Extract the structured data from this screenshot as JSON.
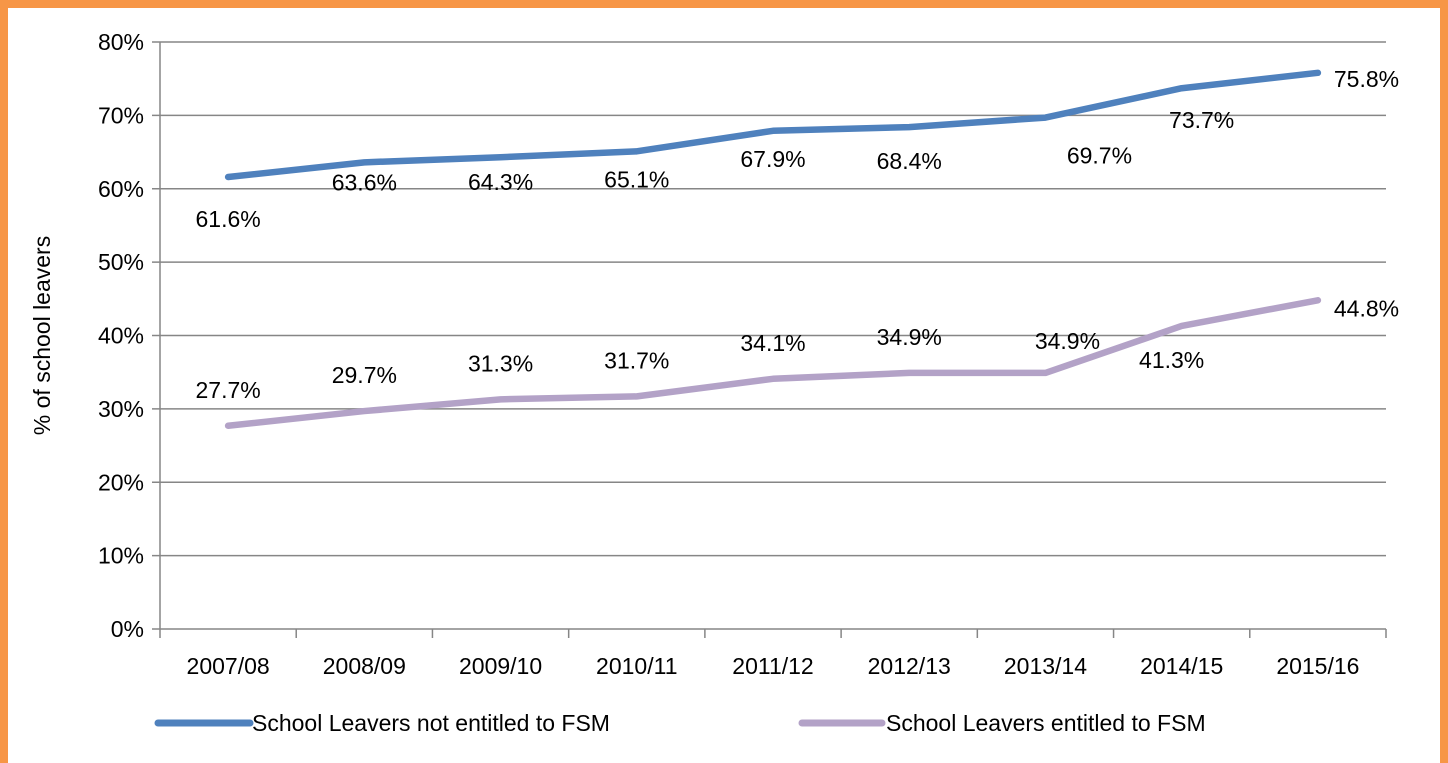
{
  "chart_data": {
    "type": "line",
    "title": "",
    "xlabel": "",
    "ylabel": "% of school leavers",
    "categories": [
      "2007/08",
      "2008/09",
      "2009/10",
      "2010/11",
      "2011/12",
      "2012/13",
      "2013/14",
      "2014/15",
      "2015/16"
    ],
    "ylim": [
      0,
      80
    ],
    "yticks": [
      "0%",
      "10%",
      "20%",
      "30%",
      "40%",
      "50%",
      "60%",
      "70%",
      "80%"
    ],
    "grid": true,
    "legend_position": "bottom",
    "series": [
      {
        "name": "School Leavers not entitled to FSM",
        "color": "#4F81BD",
        "values": [
          61.6,
          63.6,
          64.3,
          65.1,
          67.9,
          68.4,
          69.7,
          73.7,
          75.8
        ],
        "labels": [
          "61.6%",
          "63.6%",
          "64.3%",
          "65.1%",
          "67.9%",
          "68.4%",
          "69.7%",
          "73.7%",
          "75.8%"
        ]
      },
      {
        "name": "School Leavers entitled to FSM",
        "color": "#B3A2C7",
        "values": [
          27.7,
          29.7,
          31.3,
          31.7,
          34.1,
          34.9,
          34.9,
          41.3,
          44.8
        ],
        "labels": [
          "27.7%",
          "29.7%",
          "31.3%",
          "31.7%",
          "34.1%",
          "34.9%",
          "34.9%",
          "41.3%",
          "44.8%"
        ]
      }
    ]
  },
  "colors": {
    "border": "#F79646",
    "gridline": "#868686",
    "text": "#000000"
  }
}
